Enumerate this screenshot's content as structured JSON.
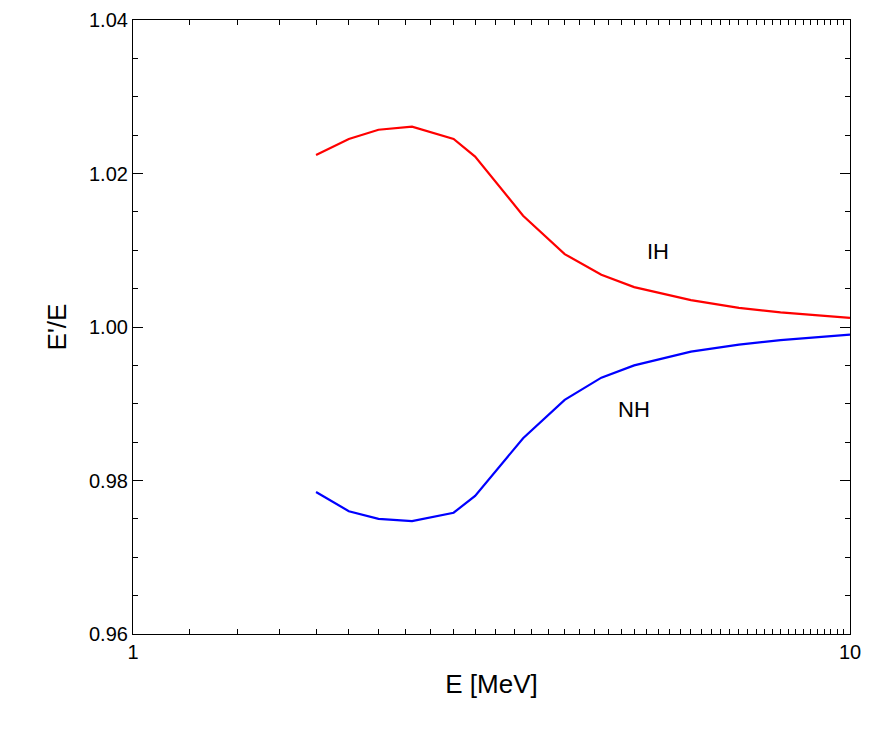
{
  "chart_data": {
    "type": "line",
    "x_label": "E [MeV]",
    "y_label": "E'/E",
    "log": "x",
    "grid": false,
    "xlim": [
      1,
      10
    ],
    "xticks": [
      1,
      10
    ],
    "ylim": [
      0.96,
      1.04
    ],
    "yticks": [
      0.96,
      0.98,
      {
        "value": 1,
        "label": "1.00"
      },
      1.02,
      1.04
    ],
    "x": [
      1.8,
      2.0,
      2.2,
      2.45,
      2.8,
      3.0,
      3.5,
      4.0,
      4.5,
      5.0,
      6.0,
      7.0,
      8.0,
      10.0
    ],
    "series": [
      {
        "name": "IH",
        "color": "#ff0000",
        "line_style": "solid",
        "values": [
          1.0224,
          1.0245,
          1.0257,
          1.0261,
          1.0245,
          1.0222,
          1.0145,
          1.0095,
          1.0068,
          1.0052,
          1.0035,
          1.0025,
          1.0019,
          1.0012
        ]
      },
      {
        "name": "NH",
        "color": "#0000ff",
        "line_style": "solid",
        "values": [
          0.9785,
          0.976,
          0.975,
          0.9747,
          0.9758,
          0.978,
          0.9855,
          0.9905,
          0.9934,
          0.995,
          0.9968,
          0.9977,
          0.9983,
          0.999
        ]
      }
    ],
    "annotations": [
      {
        "text": "IH",
        "x": 5.4,
        "y": 1.0098
      },
      {
        "text": "NH",
        "x": 5.0,
        "y": 0.9893
      }
    ]
  }
}
